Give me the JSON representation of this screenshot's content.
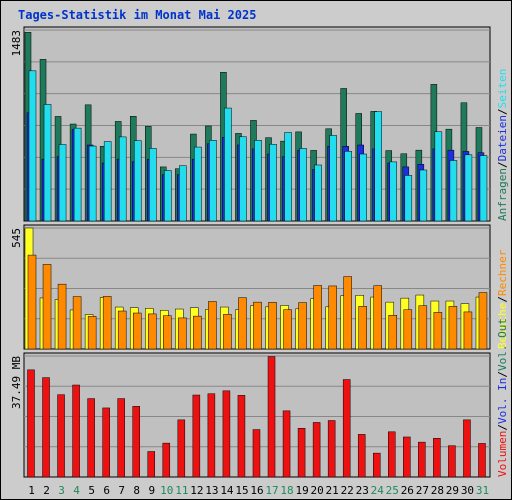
{
  "title": "Tages-Statistik im Monat Mai 2025",
  "colors": {
    "background": "#cccccc",
    "plot_bg": "#c0c0c0",
    "grid": "#888888",
    "anfragen": "#1e7a5a",
    "dateien": "#1c2ee0",
    "seiten": "#22ddee",
    "besuche": "#ffff22",
    "rechner": "#ff8a00",
    "volumen": "#ee1111",
    "weekday": "#000000",
    "weekend": "#1e8a5a",
    "sep": "#000000"
  },
  "chart_data": [
    {
      "type": "bar",
      "name": "top",
      "ytick_label": "1483",
      "ylim": [
        0,
        1483
      ],
      "legend": {
        "parts": [
          {
            "text": "Anfragen",
            "color": "#1e7a5a"
          },
          {
            "text": "/",
            "color": "#000000"
          },
          {
            "text": "Dateien",
            "color": "#1c2ee0"
          },
          {
            "text": "/",
            "color": "#000000"
          },
          {
            "text": "Seiten",
            "color": "#22ddee"
          }
        ]
      },
      "series": [
        {
          "name": "Anfragen",
          "color": "#1e7a5a",
          "values": [
            1465,
            1255,
            812,
            753,
            902,
            580,
            773,
            813,
            735,
            420,
            406,
            675,
            738,
            1155,
            680,
            781,
            647,
            620,
            692,
            548,
            716,
            1029,
            835,
            851,
            547,
            522,
            550,
            1061,
            713,
            918,
            726
          ]
        },
        {
          "name": "Dateien",
          "color": "#1c2ee0",
          "values": [
            840,
            480,
            500,
            710,
            590,
            450,
            480,
            460,
            480,
            360,
            360,
            480,
            600,
            650,
            590,
            560,
            520,
            500,
            550,
            400,
            580,
            580,
            590,
            560,
            450,
            420,
            440,
            560,
            550,
            540,
            530
          ]
        },
        {
          "name": "Seiten",
          "color": "#22ddee",
          "values": [
            1166,
            905,
            594,
            721,
            582,
            617,
            653,
            624,
            564,
            392,
            429,
            574,
            627,
            877,
            654,
            627,
            596,
            687,
            563,
            435,
            664,
            541,
            520,
            849,
            459,
            354,
            396,
            693,
            470,
            514,
            508
          ]
        }
      ]
    },
    {
      "type": "bar",
      "name": "middle",
      "ytick_label": "545",
      "ylim": [
        0,
        545
      ],
      "legend": {
        "parts": [
          {
            "text": "Besuche",
            "color": "#ffff22"
          },
          {
            "text": "/",
            "color": "#000000"
          },
          {
            "text": "Rechner",
            "color": "#ff8a00"
          }
        ]
      },
      "series": [
        {
          "name": "Besuche",
          "color": "#ffff22",
          "values": [
            545,
            230,
            223,
            176,
            155,
            232,
            189,
            186,
            183,
            174,
            180,
            186,
            178,
            189,
            177,
            195,
            190,
            196,
            181,
            227,
            190,
            240,
            242,
            234,
            211,
            229,
            243,
            216,
            216,
            204,
            234
          ]
        },
        {
          "name": "Rechner",
          "color": "#ff8a00",
          "values": [
            423,
            381,
            292,
            236,
            147,
            237,
            171,
            162,
            158,
            150,
            140,
            148,
            214,
            156,
            231,
            211,
            210,
            177,
            209,
            286,
            284,
            326,
            192,
            285,
            152,
            177,
            195,
            165,
            192,
            167,
            254
          ]
        }
      ]
    },
    {
      "type": "bar",
      "name": "bottom",
      "ytick_label": "37.49 MB",
      "ylim": [
        0,
        37.49
      ],
      "legend": {
        "parts": [
          {
            "text": "Volumen",
            "color": "#ee1111"
          },
          {
            "text": "/",
            "color": "#000000"
          },
          {
            "text": "Vol. In",
            "color": "#1c2ee0"
          },
          {
            "text": "/",
            "color": "#000000"
          },
          {
            "text": "Vol. Out",
            "color": "#1e7a5a"
          }
        ]
      },
      "series": [
        {
          "name": "Volumen",
          "color": "#ee1111",
          "values": [
            33.2,
            30.8,
            25.5,
            28.5,
            24.3,
            21.4,
            24.3,
            21.9,
            7.9,
            10.5,
            17.7,
            25.4,
            25.8,
            26.7,
            25.3,
            14.7,
            37.3,
            20.5,
            15.1,
            16.9,
            17.5,
            30.2,
            13.2,
            7.4,
            14.0,
            12.4,
            10.8,
            12.0,
            9.7,
            17.7,
            10.4
          ]
        }
      ]
    }
  ],
  "days": [
    {
      "label": "1",
      "weekend": false
    },
    {
      "label": "2",
      "weekend": false
    },
    {
      "label": "3",
      "weekend": true
    },
    {
      "label": "4",
      "weekend": true
    },
    {
      "label": "5",
      "weekend": false
    },
    {
      "label": "6",
      "weekend": false
    },
    {
      "label": "7",
      "weekend": false
    },
    {
      "label": "8",
      "weekend": false
    },
    {
      "label": "9",
      "weekend": false
    },
    {
      "label": "10",
      "weekend": true
    },
    {
      "label": "11",
      "weekend": true
    },
    {
      "label": "12",
      "weekend": false
    },
    {
      "label": "13",
      "weekend": false
    },
    {
      "label": "14",
      "weekend": false
    },
    {
      "label": "15",
      "weekend": false
    },
    {
      "label": "16",
      "weekend": false
    },
    {
      "label": "17",
      "weekend": true
    },
    {
      "label": "18",
      "weekend": true
    },
    {
      "label": "19",
      "weekend": false
    },
    {
      "label": "20",
      "weekend": false
    },
    {
      "label": "21",
      "weekend": false
    },
    {
      "label": "22",
      "weekend": false
    },
    {
      "label": "23",
      "weekend": false
    },
    {
      "label": "24",
      "weekend": true
    },
    {
      "label": "25",
      "weekend": true
    },
    {
      "label": "26",
      "weekend": false
    },
    {
      "label": "27",
      "weekend": false
    },
    {
      "label": "28",
      "weekend": false
    },
    {
      "label": "29",
      "weekend": false
    },
    {
      "label": "30",
      "weekend": false
    },
    {
      "label": "31",
      "weekend": true
    }
  ]
}
